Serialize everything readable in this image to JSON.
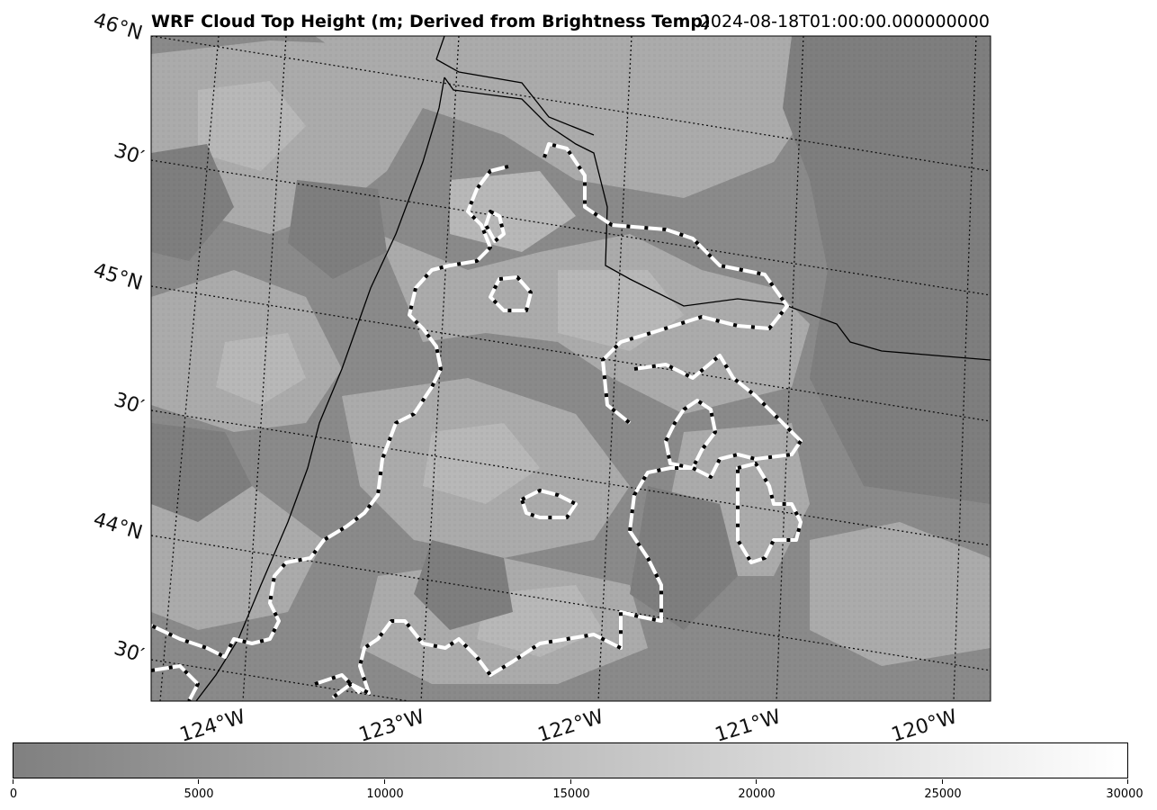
{
  "title": {
    "main": "WRF Cloud Top Height (m; Derived from Brightness Temp)",
    "timestamp": "2024-08-18T01:00:00.000000000"
  },
  "map": {
    "lat_labels": [
      "46°N",
      "30′",
      "45°N",
      "30′",
      "44°N",
      "30′"
    ],
    "lon_labels": [
      "124°W",
      "123°W",
      "122°W",
      "121°W",
      "120°W"
    ],
    "colors": {
      "background": "#8a8a8a",
      "light_cloud": "#aeaeae",
      "mid_cloud": "#9c9c9c",
      "dark_patch": "#7c7c7c",
      "contour_outer": "#ffffff",
      "contour_inner": "#000000"
    }
  },
  "colorbar": {
    "min": 0,
    "max": 30000,
    "ticks": [
      "0",
      "5000",
      "10000",
      "15000",
      "20000",
      "25000",
      "30000"
    ],
    "color_low": "#808080",
    "color_high": "#ffffff"
  }
}
